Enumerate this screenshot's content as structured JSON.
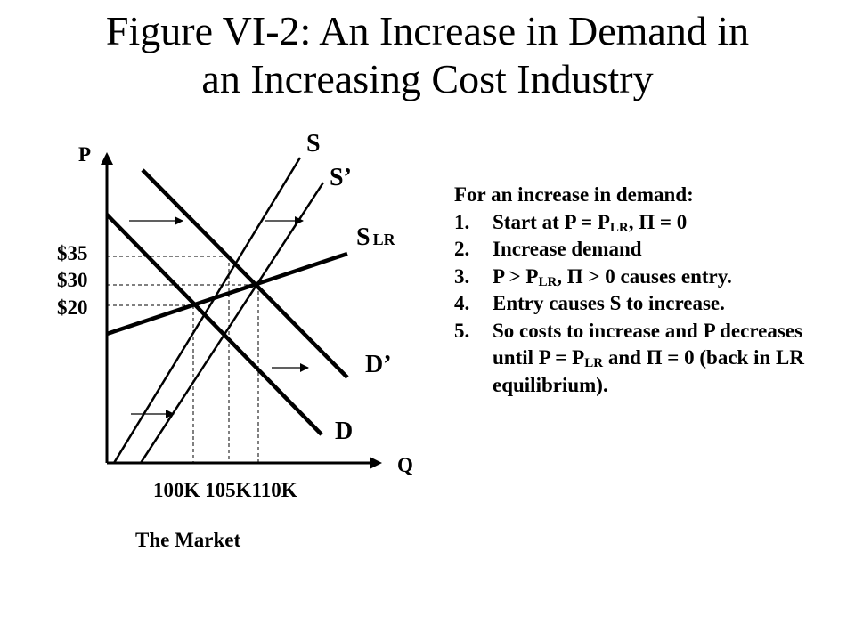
{
  "title": {
    "line1": "Figure VI-2: An Increase in Demand in",
    "line2": "an Increasing Cost Industry"
  },
  "graph": {
    "axis_y_label": "P",
    "axis_x_label": "Q",
    "prices": [
      "$35",
      "$30",
      "$20"
    ],
    "quantities_label": "100K 105K110K",
    "curves": {
      "supply": "S",
      "supply_new": "S’",
      "supply_lr_main": "S",
      "supply_lr_sub": "LR",
      "demand": "D",
      "demand_new": "D’"
    },
    "caption": "The Market"
  },
  "notes": {
    "heading": "For an increase in demand:",
    "items": [
      {
        "num": "1.",
        "a": "Start at P = P",
        "sub1": "LR",
        "b": ", Π = 0"
      },
      {
        "num": "2.",
        "a": "Increase demand"
      },
      {
        "num": "3.",
        "a": "P > P",
        "sub1": "LR",
        "b": ", Π > 0 causes entry."
      },
      {
        "num": "4.",
        "a": "Entry causes S to increase."
      },
      {
        "num": "5.",
        "a": "So costs to increase and P decreases until P = P",
        "sub1": "LR",
        "b": " and Π = 0 (back in LR equilibrium)."
      }
    ]
  }
}
